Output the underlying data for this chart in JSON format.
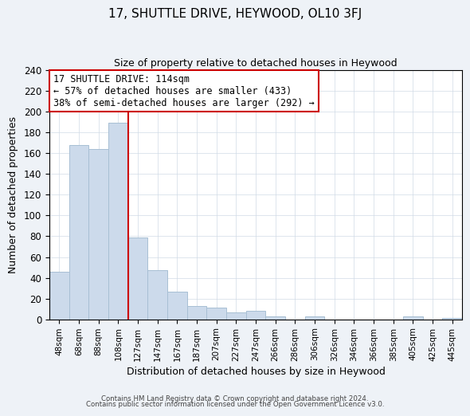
{
  "title": "17, SHUTTLE DRIVE, HEYWOOD, OL10 3FJ",
  "subtitle": "Size of property relative to detached houses in Heywood",
  "xlabel": "Distribution of detached houses by size in Heywood",
  "ylabel": "Number of detached properties",
  "bar_labels": [
    "48sqm",
    "68sqm",
    "88sqm",
    "108sqm",
    "127sqm",
    "147sqm",
    "167sqm",
    "187sqm",
    "207sqm",
    "227sqm",
    "247sqm",
    "266sqm",
    "286sqm",
    "306sqm",
    "326sqm",
    "346sqm",
    "366sqm",
    "385sqm",
    "405sqm",
    "425sqm",
    "445sqm"
  ],
  "bar_values": [
    46,
    168,
    164,
    189,
    79,
    47,
    27,
    13,
    11,
    7,
    8,
    3,
    0,
    3,
    0,
    0,
    0,
    0,
    3,
    0,
    1
  ],
  "bar_color": "#ccdaeb",
  "bar_edgecolor": "#a8bfd4",
  "vline_x": 3.5,
  "vline_color": "#cc0000",
  "annotation_title": "17 SHUTTLE DRIVE: 114sqm",
  "annotation_line1": "← 57% of detached houses are smaller (433)",
  "annotation_line2": "38% of semi-detached houses are larger (292) →",
  "annotation_box_facecolor": "#ffffff",
  "annotation_box_edgecolor": "#cc0000",
  "ylim": [
    0,
    240
  ],
  "yticks": [
    0,
    20,
    40,
    60,
    80,
    100,
    120,
    140,
    160,
    180,
    200,
    220,
    240
  ],
  "footer1": "Contains HM Land Registry data © Crown copyright and database right 2024.",
  "footer2": "Contains public sector information licensed under the Open Government Licence v3.0.",
  "background_color": "#eef2f7",
  "plot_background_color": "#ffffff",
  "grid_color": "#d0dae6"
}
